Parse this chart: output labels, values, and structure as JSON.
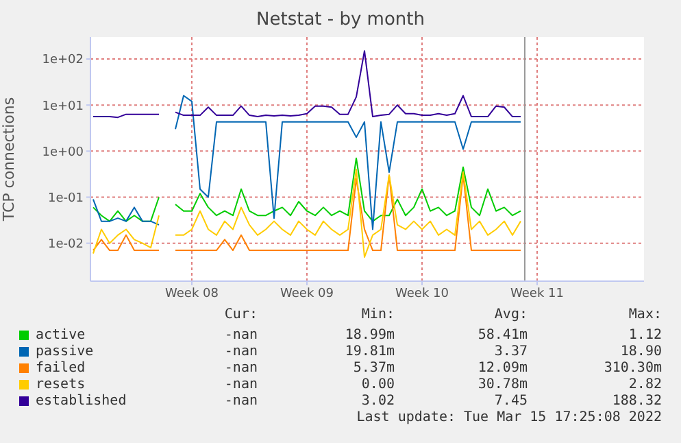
{
  "chart_data": {
    "type": "line",
    "title": "Netstat - by month",
    "ylabel": "TCP connections",
    "x": [
      "2022-02-18T12:00",
      "2022-02-19T00:00",
      "2022-02-19T12:00",
      "2022-02-20T00:00",
      "2022-02-20T12:00",
      "2022-02-21T00:00",
      "2022-02-21T12:00",
      "2022-02-22T00:00",
      "2022-02-22T12:00",
      "2022-02-23T00:00",
      "2022-02-23T12:00",
      "2022-02-24T00:00",
      "2022-02-24T12:00",
      "2022-02-25T00:00",
      "2022-02-25T12:00",
      "2022-02-26T00:00",
      "2022-02-26T12:00",
      "2022-02-27T00:00",
      "2022-02-27T12:00",
      "2022-02-28T00:00",
      "2022-02-28T12:00",
      "2022-03-01T00:00",
      "2022-03-01T12:00",
      "2022-03-02T00:00",
      "2022-03-02T12:00",
      "2022-03-03T00:00",
      "2022-03-03T12:00",
      "2022-03-04T00:00",
      "2022-03-04T12:00",
      "2022-03-05T00:00",
      "2022-03-05T12:00",
      "2022-03-06T00:00",
      "2022-03-06T12:00",
      "2022-03-07T00:00",
      "2022-03-07T12:00",
      "2022-03-08T00:00",
      "2022-03-08T12:00",
      "2022-03-09T00:00",
      "2022-03-09T12:00",
      "2022-03-10T00:00",
      "2022-03-10T12:00",
      "2022-03-11T00:00",
      "2022-03-11T12:00",
      "2022-03-12T00:00",
      "2022-03-12T12:00",
      "2022-03-13T00:00",
      "2022-03-13T12:00",
      "2022-03-14T00:00",
      "2022-03-14T12:00",
      "2022-03-15T00:00",
      "2022-03-15T12:00",
      "2022-03-16T00:00",
      "2022-03-16T12:00"
    ],
    "series": [
      {
        "name": "active",
        "color": "#00cc00",
        "values": [
          0.06,
          0.04,
          0.03,
          0.05,
          0.03,
          0.04,
          0.03,
          0.03,
          0.1,
          null,
          0.07,
          0.05,
          0.05,
          0.12,
          0.06,
          0.04,
          0.05,
          0.04,
          0.15,
          0.05,
          0.04,
          0.04,
          0.05,
          0.06,
          0.04,
          0.08,
          0.05,
          0.04,
          0.06,
          0.04,
          0.05,
          0.04,
          0.7,
          0.05,
          0.03,
          0.04,
          0.04,
          0.09,
          0.04,
          0.06,
          0.15,
          0.05,
          0.06,
          0.04,
          0.05,
          0.45,
          0.06,
          0.04,
          0.15,
          0.05,
          0.06,
          0.04,
          0.05
        ]
      },
      {
        "name": "passive",
        "color": "#0066b3",
        "values": [
          0.09,
          0.03,
          0.03,
          0.035,
          0.03,
          0.06,
          0.03,
          0.03,
          0.025,
          null,
          3,
          16,
          12,
          0.15,
          0.1,
          4.3,
          4.3,
          4.3,
          4.3,
          4.3,
          4.3,
          4.3,
          0.035,
          4.3,
          4.3,
          4.3,
          4.3,
          4.3,
          4.3,
          4.3,
          4.3,
          4.3,
          2,
          4.3,
          0.02,
          4.3,
          0.35,
          4.3,
          4.3,
          4.3,
          4.3,
          4.3,
          4.3,
          4.3,
          4.3,
          1.1,
          4.3,
          4.3,
          4.3,
          4.3,
          4.3,
          4.3,
          4.3
        ]
      },
      {
        "name": "failed",
        "color": "#ff8000",
        "values": [
          0.007,
          0.012,
          0.007,
          0.007,
          0.015,
          0.007,
          0.007,
          0.007,
          0.007,
          null,
          0.007,
          0.007,
          0.007,
          0.007,
          0.007,
          0.007,
          0.012,
          0.007,
          0.015,
          0.007,
          0.007,
          0.007,
          0.007,
          0.007,
          0.007,
          0.007,
          0.007,
          0.007,
          0.007,
          0.007,
          0.007,
          0.007,
          0.25,
          0.02,
          0.007,
          0.007,
          0.3,
          0.007,
          0.007,
          0.007,
          0.007,
          0.007,
          0.007,
          0.007,
          0.007,
          0.3,
          0.007,
          0.007,
          0.007,
          0.007,
          0.007,
          0.007,
          0.007
        ]
      },
      {
        "name": "resets",
        "color": "#ffcc00",
        "values": [
          0.006,
          0.02,
          0.01,
          0.015,
          0.02,
          0.012,
          0.01,
          0.008,
          0.04,
          null,
          0.015,
          0.015,
          0.02,
          0.05,
          0.02,
          0.015,
          0.03,
          0.02,
          0.06,
          0.025,
          0.015,
          0.02,
          0.03,
          0.02,
          0.015,
          0.03,
          0.02,
          0.015,
          0.03,
          0.02,
          0.015,
          0.02,
          0.4,
          0.005,
          0.015,
          0.02,
          0.3,
          0.025,
          0.02,
          0.03,
          0.02,
          0.03,
          0.015,
          0.02,
          0.015,
          0.35,
          0.02,
          0.03,
          0.015,
          0.02,
          0.03,
          0.015,
          0.03
        ]
      },
      {
        "name": "established",
        "color": "#330099",
        "values": [
          5.6,
          5.6,
          5.6,
          5.4,
          6.3,
          6.3,
          6.3,
          6.3,
          6.3,
          null,
          7,
          6,
          6,
          6,
          9,
          6,
          6,
          6,
          9.5,
          6,
          5.6,
          6,
          5.8,
          6,
          5.8,
          6,
          6.5,
          9.5,
          9.5,
          9,
          6.3,
          6.3,
          15,
          150,
          5.6,
          6,
          6.3,
          10,
          6.5,
          6.5,
          6,
          6,
          6.5,
          6,
          6.5,
          16,
          5.6,
          5.6,
          5.6,
          9.5,
          9,
          5.6,
          5.6
        ]
      }
    ],
    "xlim": [
      "2022-02-18T08:00",
      "2022-03-24T00:00"
    ],
    "xticks": [
      {
        "value": "2022-02-24T12:00",
        "label": "Week 08"
      },
      {
        "value": "2022-03-03T12:00",
        "label": "Week 09"
      },
      {
        "value": "2022-03-10T12:00",
        "label": "Week 10"
      },
      {
        "value": "2022-03-17T12:00",
        "label": "Week 11"
      }
    ],
    "ylim": [
      0.0015,
      300
    ],
    "yticks": [
      {
        "value": 0.01,
        "label": "1e-02"
      },
      {
        "value": 0.1,
        "label": "1e-01"
      },
      {
        "value": 1,
        "label": "1e+00"
      },
      {
        "value": 10,
        "label": "1e+01"
      },
      {
        "value": 100,
        "label": "1e+02"
      }
    ],
    "log": "y",
    "grid": true,
    "legend": "bottom",
    "marker": "none",
    "line_style": "solid",
    "ref_lines": [
      {
        "axis": "x",
        "value": "2022-03-16T18:00",
        "label": null,
        "color": "#999999"
      }
    ],
    "annotations": [
      "Cur:",
      "Min:",
      "Avg:",
      "Max:",
      "-nan",
      "18.99m",
      "58.41m",
      "1.12",
      "-nan",
      "19.81m",
      "3.37",
      "18.90",
      "-nan",
      "5.37m",
      "12.09m",
      "310.30m",
      "-nan",
      "0.00",
      "30.78m",
      "2.82",
      "-nan",
      "3.02",
      "7.45",
      "188.32",
      "Last update: Tue Mar 15 17:25:08 2022"
    ]
  }
}
